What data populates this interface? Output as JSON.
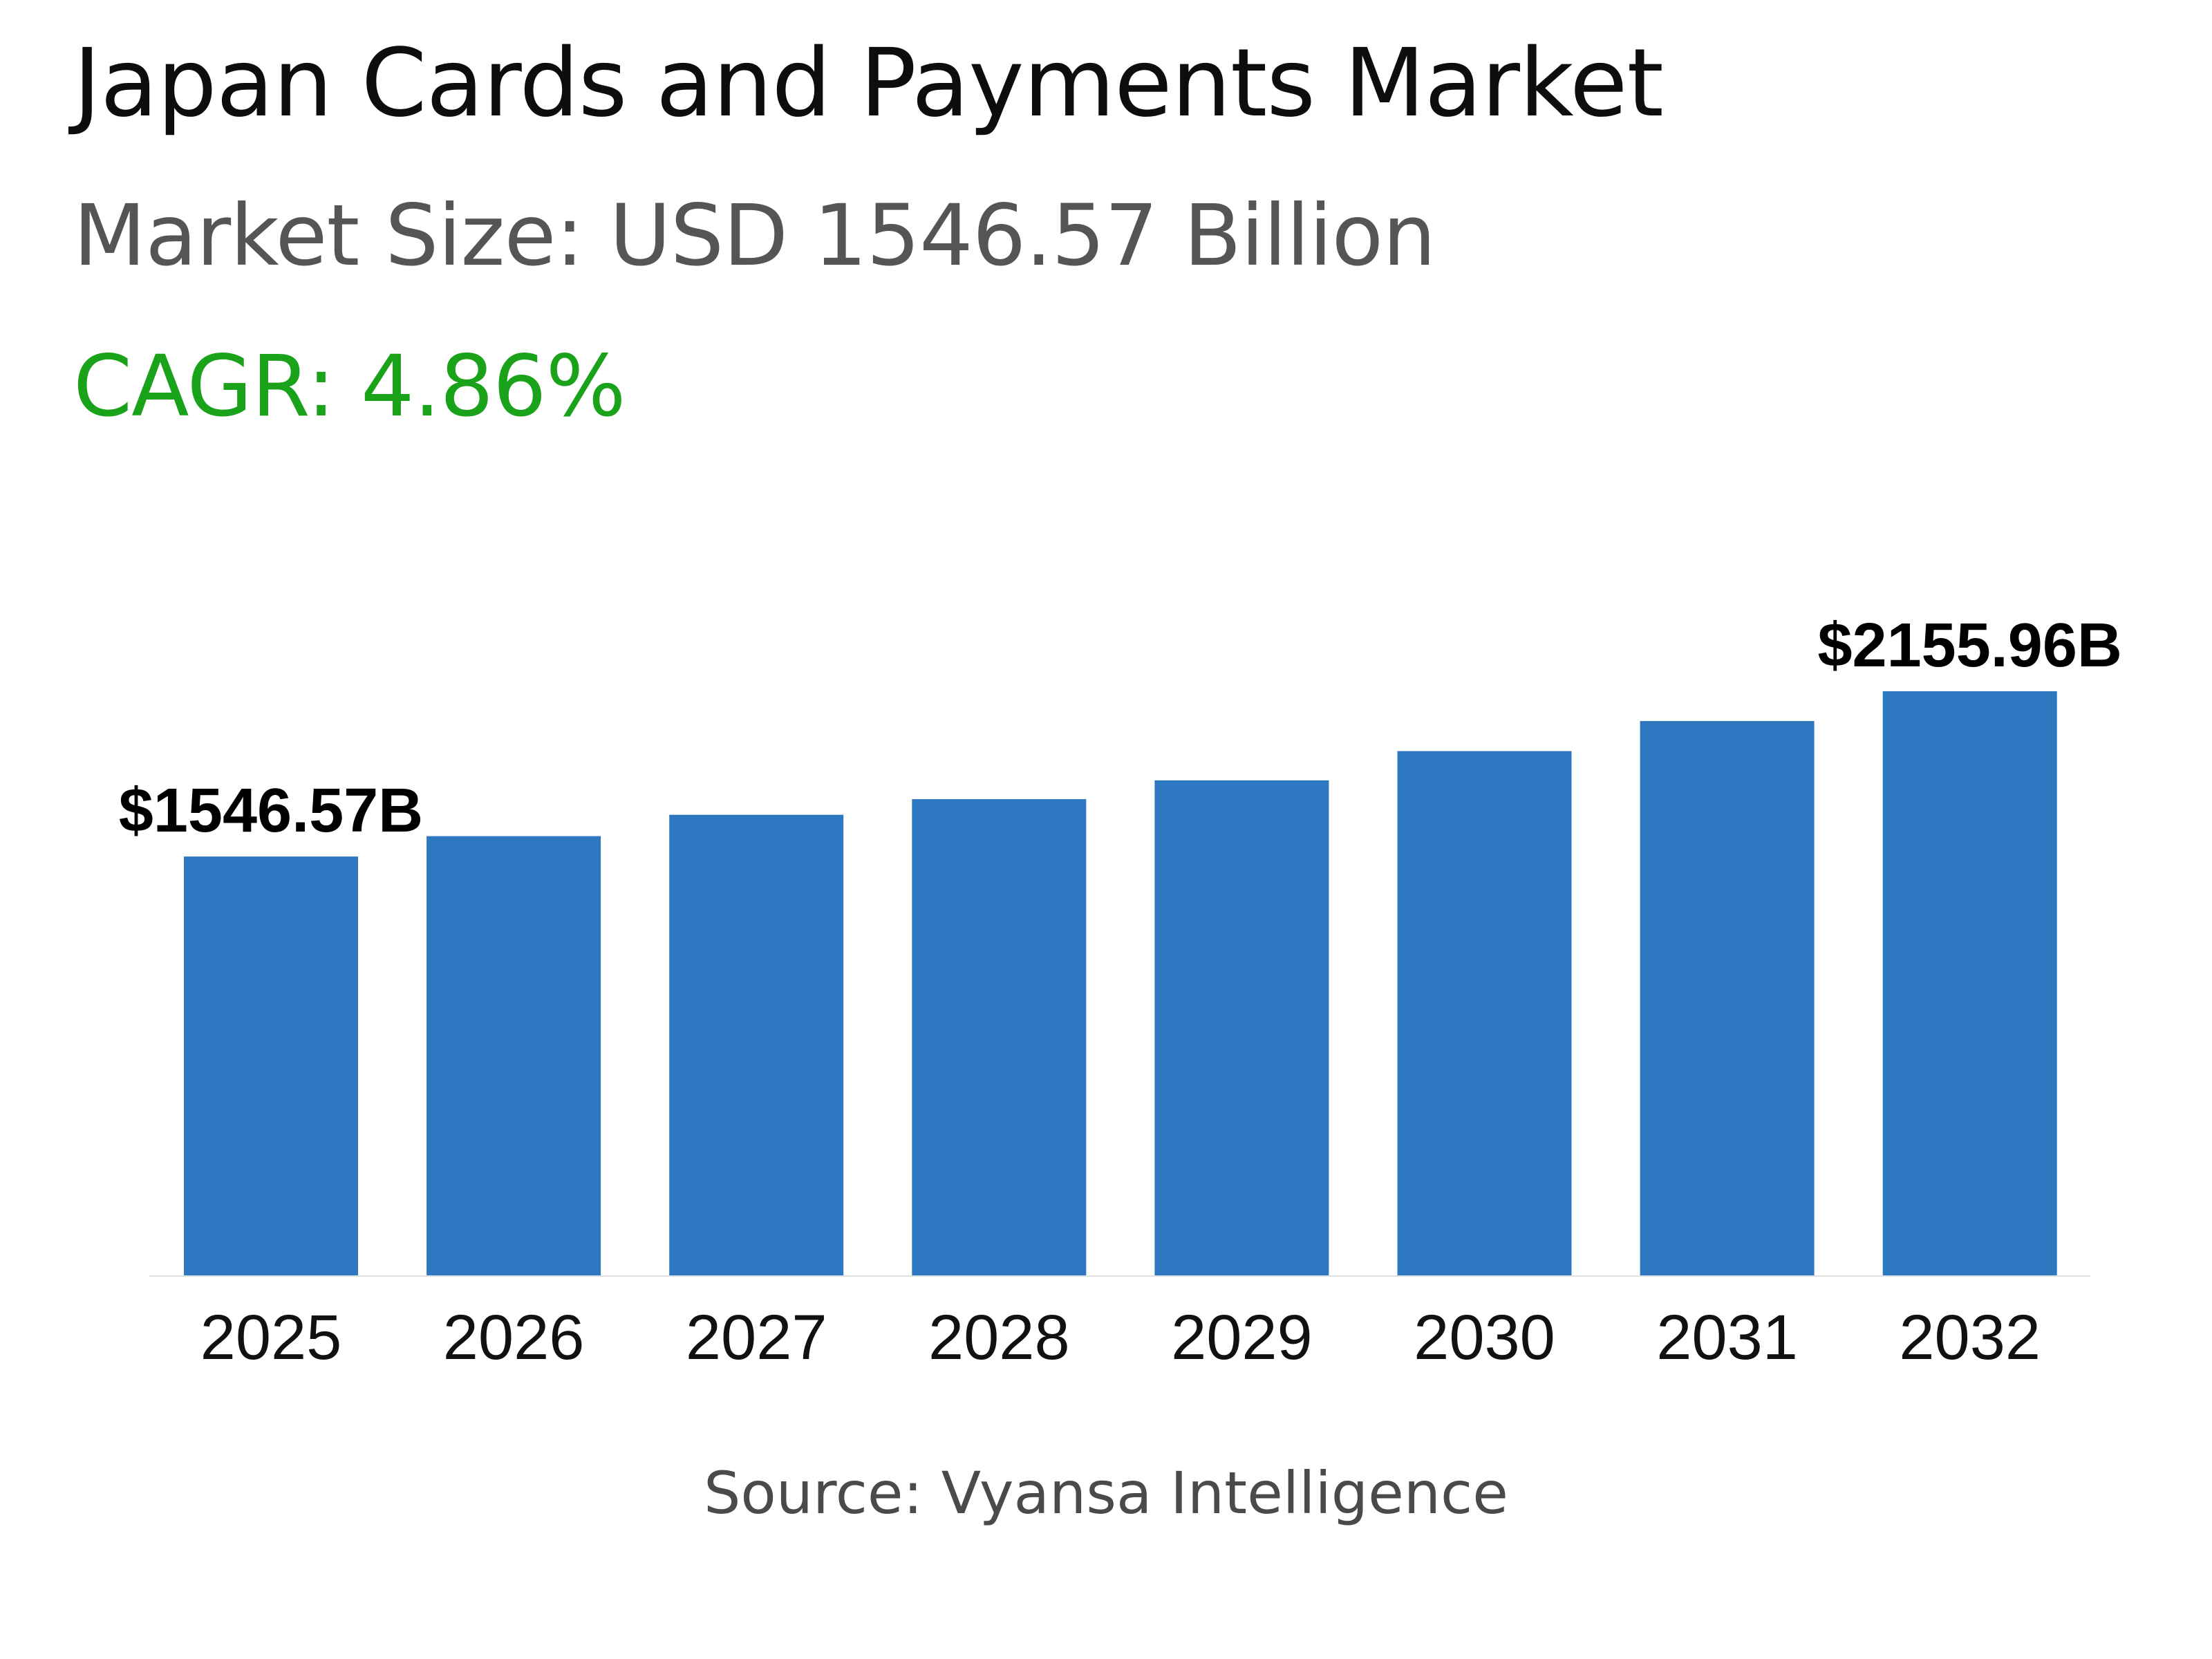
{
  "header": {
    "title": "Japan Cards and Payments Market",
    "market_size": "Market Size: USD 1546.57 Billion",
    "cagr": "CAGR: 4.86%"
  },
  "footer": {
    "source": "Source: Vyansa Intelligence"
  },
  "colors": {
    "bar": "#2d78c0",
    "title": "#0d0d0d",
    "subtitle": "#555555",
    "cagr": "#1aa21a",
    "axis": "#e0e0e0"
  },
  "chart_data": {
    "type": "bar",
    "categories": [
      "2025",
      "2026",
      "2027",
      "2028",
      "2029",
      "2030",
      "2031",
      "2032"
    ],
    "values": [
      1546.57,
      1621.77,
      1700.62,
      1758.1,
      1827.5,
      1935.3,
      2046.2,
      2155.96
    ],
    "data_labels": [
      {
        "index": 0,
        "text": "$1546.57B"
      },
      {
        "index": 7,
        "text": "$2155.96B"
      }
    ],
    "ylim": [
      0,
      2155.96
    ],
    "grid": false,
    "legend": "none"
  }
}
